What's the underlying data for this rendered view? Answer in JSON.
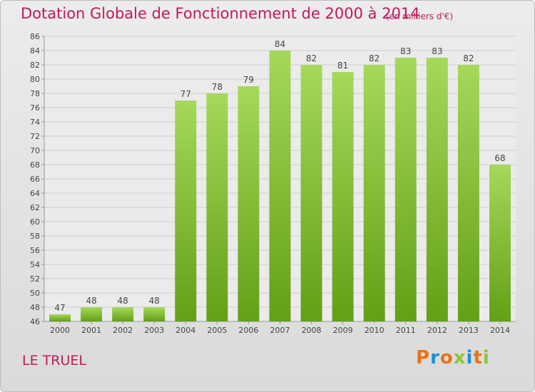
{
  "header": {
    "title": "Dotation Globale de Fonctionnement de 2000 à 2014",
    "unit": "(en milliers d'€)"
  },
  "footer": {
    "commune": "LE TRUEL",
    "brand": "Proxiti"
  },
  "colors": {
    "title": "#c2185b",
    "bar_light": "#a6d85a",
    "bar_dark": "#62a015",
    "brand_letters": [
      "#e8731a",
      "#1c8fd6",
      "#e8731a",
      "#8cc43c",
      "#1c8fd6",
      "#e8731a",
      "#8cc43c"
    ]
  },
  "chart_data": {
    "type": "bar",
    "title": "Dotation Globale de Fonctionnement de 2000 à 2014",
    "categories": [
      "2000",
      "2001",
      "2002",
      "2003",
      "2004",
      "2005",
      "2006",
      "2007",
      "2008",
      "2009",
      "2010",
      "2011",
      "2012",
      "2013",
      "2014"
    ],
    "values": [
      47,
      48,
      48,
      48,
      77,
      78,
      79,
      84,
      82,
      81,
      82,
      83,
      83,
      82,
      68
    ],
    "ylim": [
      46,
      86
    ],
    "ytick_step": 2,
    "grid": true,
    "legend": "none"
  }
}
